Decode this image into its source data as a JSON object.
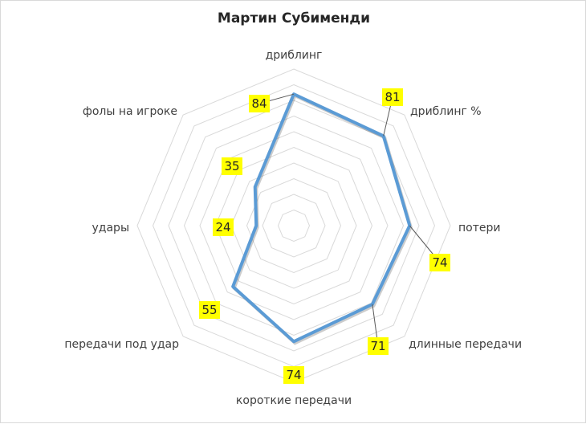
{
  "chart_data": {
    "type": "radar",
    "title": "Мартин Субименди",
    "categories": [
      "дриблинг",
      "дриблинг %",
      "потери",
      "длинные передачи",
      "короткие передачи",
      "передачи под удар",
      "удары",
      "фолы на игроке"
    ],
    "series": [
      {
        "values": [
          84,
          81,
          74,
          71,
          74,
          55,
          24,
          35
        ]
      }
    ],
    "range": [
      0,
      100
    ],
    "gridlines": 10,
    "data_labels": true,
    "colors": {
      "line": "#5b9bd5",
      "label_bg": "#ffff00",
      "grid": "#d9d9d9"
    }
  }
}
